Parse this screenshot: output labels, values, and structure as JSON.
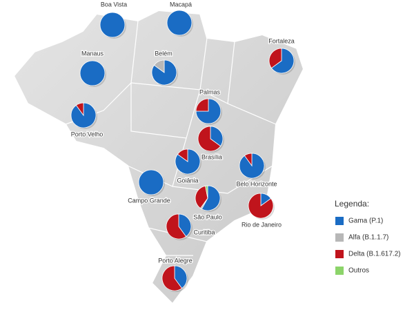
{
  "legend": {
    "title": "Legenda:",
    "items": [
      {
        "name": "Gama (P.1)",
        "color": "#1a6cc4"
      },
      {
        "name": "Alfa (B.1.1.7)",
        "color": "#b7b7b7"
      },
      {
        "name": "Delta (B.1.617.2)",
        "color": "#c0141c"
      },
      {
        "name": "Outros",
        "color": "#8cd46a"
      }
    ]
  },
  "cities": [
    {
      "name": "Boa Vista",
      "values": [
        100,
        0,
        0,
        0
      ]
    },
    {
      "name": "Macapá",
      "values": [
        100,
        0,
        0,
        0
      ]
    },
    {
      "name": "Manaus",
      "values": [
        100,
        0,
        0,
        0
      ]
    },
    {
      "name": "Belém",
      "values": [
        85,
        15,
        0,
        0
      ]
    },
    {
      "name": "Fortaleza",
      "values": [
        65,
        0,
        35,
        0
      ]
    },
    {
      "name": "Porto Velho",
      "values": [
        90,
        0,
        10,
        0
      ]
    },
    {
      "name": "Palmas",
      "values": [
        75,
        0,
        25,
        0
      ]
    },
    {
      "name": "Brasília",
      "values": [
        35,
        0,
        65,
        0
      ]
    },
    {
      "name": "Goiânia",
      "values": [
        85,
        0,
        15,
        0
      ]
    },
    {
      "name": "Belo Horizonte",
      "values": [
        90,
        0,
        10,
        0
      ]
    },
    {
      "name": "Campo Grande",
      "values": [
        100,
        0,
        0,
        0
      ]
    },
    {
      "name": "São Paulo",
      "values": [
        58,
        2,
        37,
        3
      ]
    },
    {
      "name": "Rio de Janeiro",
      "values": [
        15,
        0,
        85,
        0
      ]
    },
    {
      "name": "Curitiba",
      "values": [
        40,
        0,
        60,
        0
      ]
    },
    {
      "name": "Porto Alegre",
      "values": [
        40,
        0,
        60,
        0
      ]
    }
  ]
}
